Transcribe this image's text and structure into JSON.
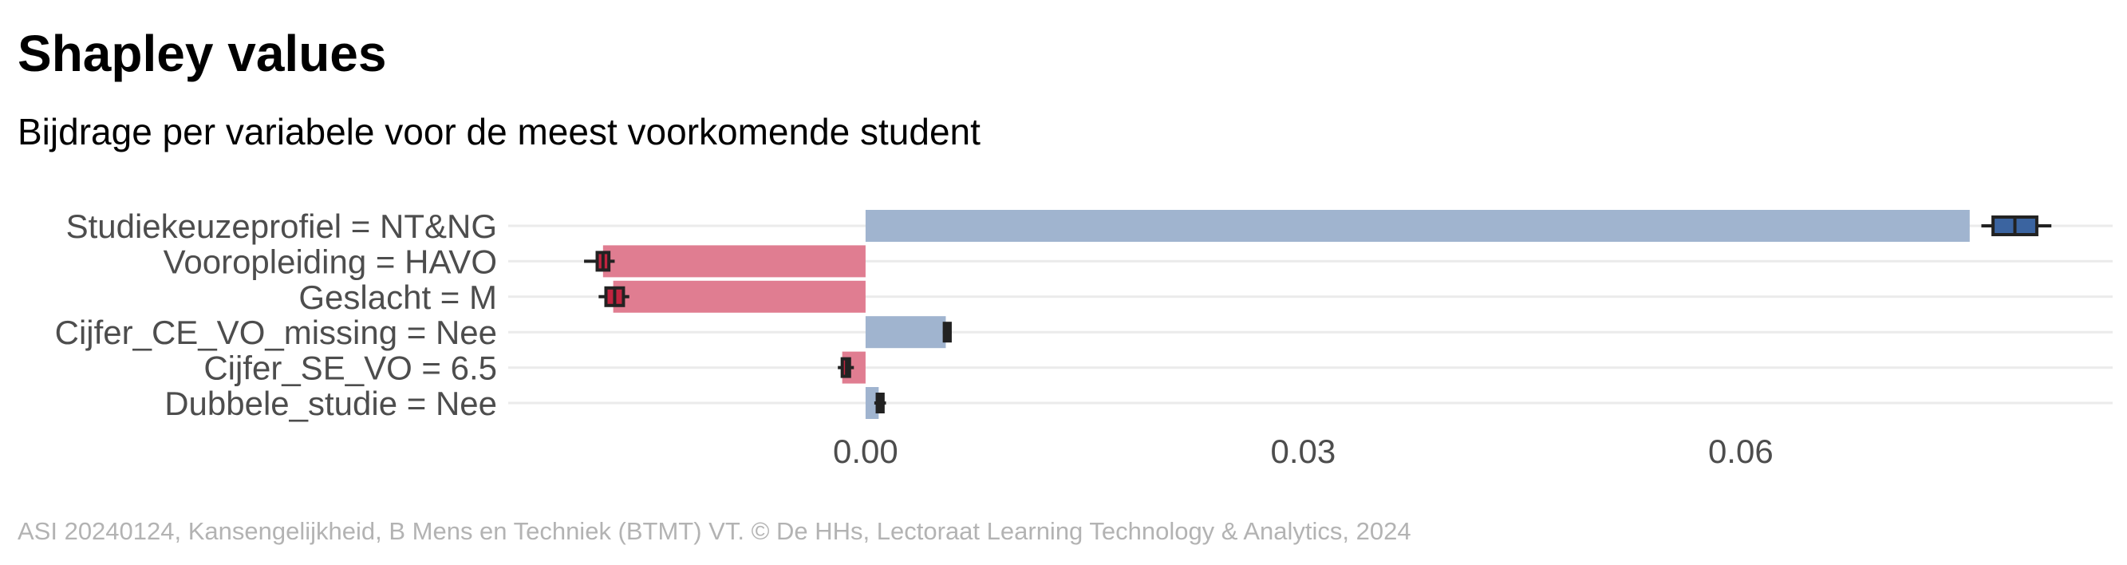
{
  "title": "Shapley values",
  "subtitle": "Bijdrage per variabele voor de meest voorkomende student",
  "caption": "ASI 20240124, Kansengelijkheid, B Mens en Techniek (BTMT) VT. © De HHs, Lectoraat Learning Technology & Analytics, 2024",
  "colors": {
    "positive_bar": "#a0b4cf",
    "negative_bar": "#e07d91",
    "positive_box": "#3b64a0",
    "negative_box": "#c0243f",
    "whisker": "#222222",
    "gridline": "#ebebeb"
  },
  "chart_data": {
    "type": "bar",
    "orientation": "horizontal",
    "title": "Shapley values",
    "subtitle": "Bijdrage per variabele voor de meest voorkomende student",
    "xlabel": "",
    "ylabel": "",
    "categories": [
      "Studiekeuzeprofiel = NT&NG",
      "Vooropleiding = HAVO",
      "Geslacht = M",
      "Cijfer_CE_VO_missing = Nee",
      "Cijfer_SE_VO = 6.5",
      "Dubbele_studie = Nee"
    ],
    "values": [
      0.0757,
      -0.018,
      -0.0173,
      0.0055,
      -0.0016,
      0.0009
    ],
    "boxes": [
      {
        "q1": 0.0773,
        "median": 0.0788,
        "q3": 0.0803,
        "min": 0.0765,
        "max": 0.0813
      },
      {
        "q1": -0.0184,
        "median": -0.018,
        "q3": -0.0176,
        "min": -0.0193,
        "max": -0.0172
      },
      {
        "q1": -0.0178,
        "median": -0.0172,
        "q3": -0.0166,
        "min": -0.0183,
        "max": -0.0162
      },
      {
        "q1": 0.0054,
        "median": 0.0056,
        "q3": 0.0058,
        "min": 0.0053,
        "max": 0.0059
      },
      {
        "q1": -0.0016,
        "median": -0.0013,
        "q3": -0.0011,
        "min": -0.0019,
        "max": -0.0008
      },
      {
        "q1": 0.0008,
        "median": 0.001,
        "q3": 0.0012,
        "min": 0.0006,
        "max": 0.0014
      }
    ],
    "xticks": [
      0.0,
      0.03,
      0.06
    ],
    "xtick_labels": [
      "0.00",
      "0.03",
      "0.06"
    ],
    "xlim": [
      -0.0245,
      0.0855
    ],
    "grid": true,
    "legend": "none"
  }
}
